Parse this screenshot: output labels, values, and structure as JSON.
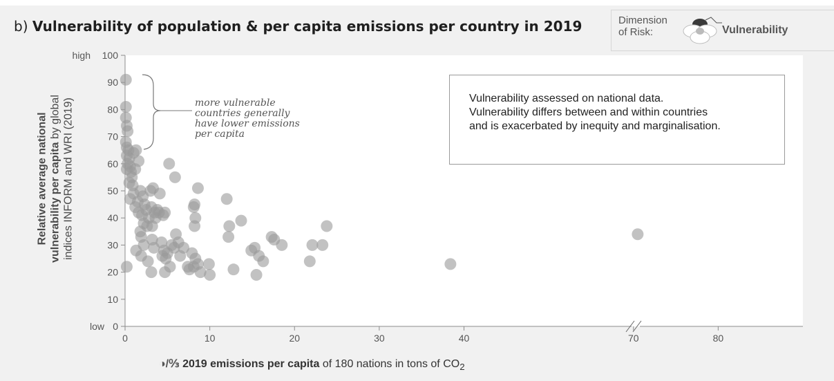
{
  "title": {
    "prefix": "b)",
    "text": "Vulnerability of population & per capita emissions per country in 2019"
  },
  "legend": {
    "dimension_label_line1": "Dimension",
    "dimension_label_line2": "of Risk:",
    "dimension_value": "Vulnerability"
  },
  "y_axis": {
    "label_bold_line1": "Relative average national",
    "label_bold_line2": "vulnerability per capita",
    "label_line2_rest": " by global",
    "label_line3": "indices INFORM and WRI (2019)",
    "high_label": "high",
    "low_label": "low"
  },
  "x_axis": {
    "label_bold": "2019 emissions per capita",
    "label_rest": " of 180 nations in tons of CO",
    "label_subscript": "2",
    "icon": "emissions-per-person-icon"
  },
  "note": {
    "line1": "Vulnerability assessed on national data.",
    "line2": "Vulnerability differs between and within countries",
    "line3": "and is exacerbated by inequity and marginalisation."
  },
  "annotation": {
    "line1": "more vulnerable",
    "line2": "countries generally",
    "line3": "have lower emissions",
    "line4": "per capita"
  },
  "colors": {
    "point": "#9a9a9a",
    "plot_bg": "#ffffff",
    "panel_bg": "#f1f1f1",
    "axis": "#8c8c8c"
  },
  "chart_data": {
    "type": "scatter",
    "title": "Vulnerability of population & per capita emissions per country in 2019",
    "xlabel": "2019 emissions per capita of 180 nations in tons of CO2",
    "ylabel": "Relative average national vulnerability per capita by global indices INFORM and WRI (2019)",
    "xlim": [
      0,
      80
    ],
    "ylim": [
      0,
      100
    ],
    "x_broken_axis": {
      "break_after": 45,
      "resumes_at": 70
    },
    "xticks": [
      0,
      10,
      20,
      30,
      40,
      70,
      80
    ],
    "yticks": [
      0,
      10,
      20,
      30,
      40,
      50,
      60,
      70,
      80,
      90,
      100
    ],
    "grid": false,
    "points": [
      {
        "x": 0.1,
        "y": 91
      },
      {
        "x": 0.1,
        "y": 81
      },
      {
        "x": 0.1,
        "y": 77
      },
      {
        "x": 0.2,
        "y": 74
      },
      {
        "x": 0.3,
        "y": 72
      },
      {
        "x": 0.1,
        "y": 68
      },
      {
        "x": 0.2,
        "y": 66
      },
      {
        "x": 0.4,
        "y": 65
      },
      {
        "x": 0.2,
        "y": 63
      },
      {
        "x": 0.5,
        "y": 62
      },
      {
        "x": 0.3,
        "y": 60
      },
      {
        "x": 0.6,
        "y": 59
      },
      {
        "x": 0.2,
        "y": 58
      },
      {
        "x": 0.7,
        "y": 57
      },
      {
        "x": 0.8,
        "y": 55
      },
      {
        "x": 0.5,
        "y": 53
      },
      {
        "x": 0.9,
        "y": 52
      },
      {
        "x": 1.0,
        "y": 64
      },
      {
        "x": 1.3,
        "y": 65
      },
      {
        "x": 1.6,
        "y": 61
      },
      {
        "x": 1.2,
        "y": 58
      },
      {
        "x": 0.6,
        "y": 47
      },
      {
        "x": 1.0,
        "y": 49
      },
      {
        "x": 1.5,
        "y": 46
      },
      {
        "x": 1.8,
        "y": 50
      },
      {
        "x": 2.1,
        "y": 48
      },
      {
        "x": 2.3,
        "y": 45
      },
      {
        "x": 1.2,
        "y": 44
      },
      {
        "x": 1.6,
        "y": 42
      },
      {
        "x": 2.0,
        "y": 41
      },
      {
        "x": 2.5,
        "y": 43
      },
      {
        "x": 2.8,
        "y": 40
      },
      {
        "x": 3.1,
        "y": 44
      },
      {
        "x": 2.2,
        "y": 38
      },
      {
        "x": 2.6,
        "y": 37
      },
      {
        "x": 1.8,
        "y": 35
      },
      {
        "x": 1.9,
        "y": 33
      },
      {
        "x": 2.2,
        "y": 30
      },
      {
        "x": 3.0,
        "y": 50
      },
      {
        "x": 3.3,
        "y": 51
      },
      {
        "x": 4.1,
        "y": 49
      },
      {
        "x": 3.5,
        "y": 42
      },
      {
        "x": 3.8,
        "y": 43
      },
      {
        "x": 4.0,
        "y": 42
      },
      {
        "x": 3.6,
        "y": 40
      },
      {
        "x": 3.2,
        "y": 37
      },
      {
        "x": 4.7,
        "y": 42
      },
      {
        "x": 5.2,
        "y": 60
      },
      {
        "x": 5.9,
        "y": 55
      },
      {
        "x": 4.5,
        "y": 41
      },
      {
        "x": 1.3,
        "y": 28
      },
      {
        "x": 1.9,
        "y": 26
      },
      {
        "x": 2.7,
        "y": 24
      },
      {
        "x": 3.1,
        "y": 20
      },
      {
        "x": 3.4,
        "y": 29
      },
      {
        "x": 3.2,
        "y": 32
      },
      {
        "x": 4.3,
        "y": 31
      },
      {
        "x": 4.6,
        "y": 28
      },
      {
        "x": 4.4,
        "y": 26
      },
      {
        "x": 4.8,
        "y": 25
      },
      {
        "x": 5.0,
        "y": 27
      },
      {
        "x": 5.3,
        "y": 22
      },
      {
        "x": 4.7,
        "y": 20
      },
      {
        "x": 5.5,
        "y": 30
      },
      {
        "x": 5.8,
        "y": 29
      },
      {
        "x": 6.0,
        "y": 34
      },
      {
        "x": 6.3,
        "y": 31
      },
      {
        "x": 6.5,
        "y": 26
      },
      {
        "x": 6.9,
        "y": 29
      },
      {
        "x": 7.4,
        "y": 22
      },
      {
        "x": 7.6,
        "y": 21
      },
      {
        "x": 7.9,
        "y": 27
      },
      {
        "x": 8.1,
        "y": 22
      },
      {
        "x": 8.3,
        "y": 25
      },
      {
        "x": 8.6,
        "y": 23
      },
      {
        "x": 8.2,
        "y": 45
      },
      {
        "x": 8.1,
        "y": 44
      },
      {
        "x": 8.6,
        "y": 51
      },
      {
        "x": 8.3,
        "y": 40
      },
      {
        "x": 8.2,
        "y": 37
      },
      {
        "x": 8.9,
        "y": 20
      },
      {
        "x": 9.9,
        "y": 23
      },
      {
        "x": 10.0,
        "y": 19
      },
      {
        "x": 0.2,
        "y": 22
      },
      {
        "x": 12.0,
        "y": 47
      },
      {
        "x": 12.3,
        "y": 37
      },
      {
        "x": 12.2,
        "y": 33
      },
      {
        "x": 12.8,
        "y": 21
      },
      {
        "x": 13.7,
        "y": 39
      },
      {
        "x": 14.9,
        "y": 28
      },
      {
        "x": 15.3,
        "y": 29
      },
      {
        "x": 15.8,
        "y": 26
      },
      {
        "x": 15.5,
        "y": 19
      },
      {
        "x": 16.3,
        "y": 24
      },
      {
        "x": 17.3,
        "y": 33
      },
      {
        "x": 17.6,
        "y": 32
      },
      {
        "x": 18.5,
        "y": 30
      },
      {
        "x": 21.8,
        "y": 24
      },
      {
        "x": 22.1,
        "y": 30
      },
      {
        "x": 23.3,
        "y": 30
      },
      {
        "x": 23.8,
        "y": 37
      },
      {
        "x": 38.4,
        "y": 23
      },
      {
        "x": 70.5,
        "y": 34
      }
    ]
  }
}
